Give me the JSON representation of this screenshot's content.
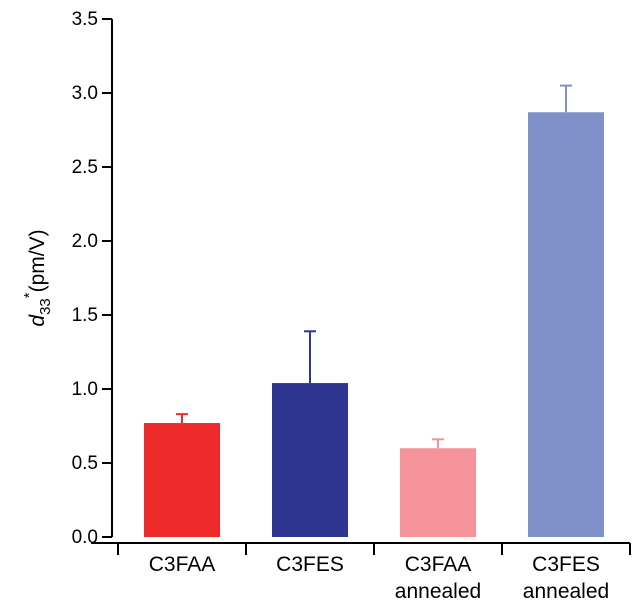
{
  "chart_data": {
    "type": "bar",
    "ylabel": {
      "symbol": "d",
      "subscript": "33",
      "superscript": "*",
      "unit": "(pm/V)"
    },
    "ylim": [
      0,
      3.5
    ],
    "yticks": [
      "0.0",
      "0.5",
      "1.0",
      "1.5",
      "2.0",
      "2.5",
      "3.0",
      "3.5"
    ],
    "grid": false,
    "categories": [
      {
        "line1": "C3FAA",
        "line2": ""
      },
      {
        "line1": "C3FES",
        "line2": ""
      },
      {
        "line1": "C3FAA",
        "line2": "annealed"
      },
      {
        "line1": "C3FES",
        "line2": "annealed"
      }
    ],
    "values": [
      0.77,
      1.04,
      0.6,
      2.87
    ],
    "error_upper": [
      0.06,
      0.35,
      0.06,
      0.18
    ],
    "colors": [
      "#ee2a2a",
      "#2e3591",
      "#f4949a",
      "#7f91c8"
    ]
  }
}
